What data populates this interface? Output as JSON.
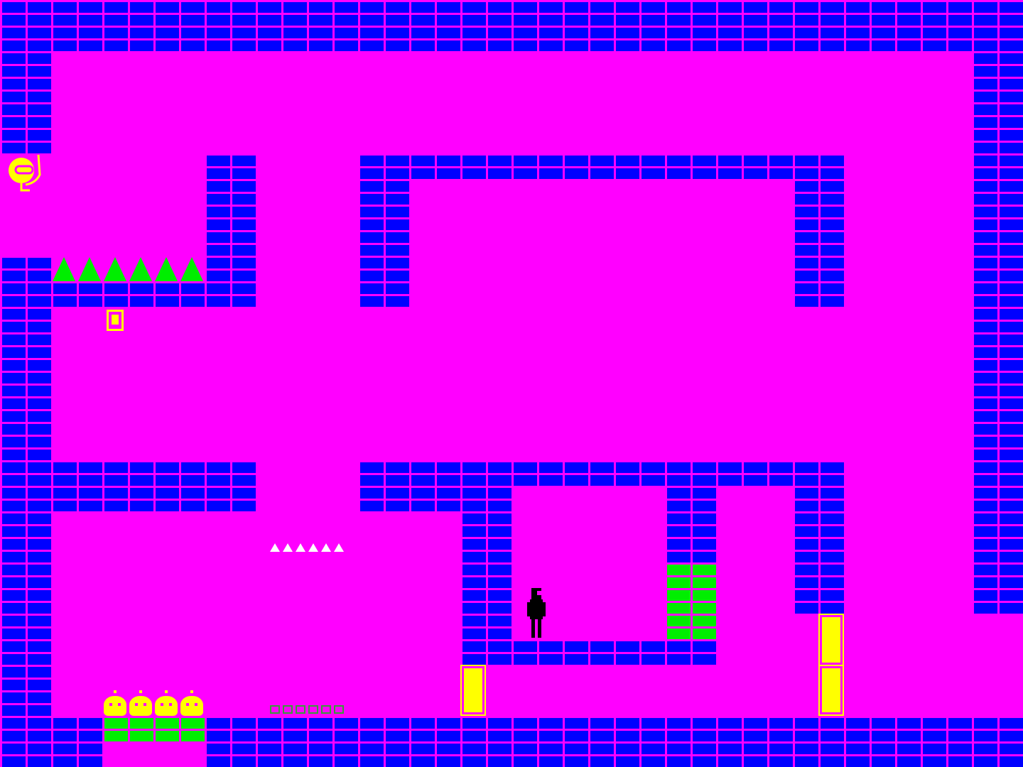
{
  "game": {
    "colors": {
      "background": "#ff00ff",
      "wall": "#0000ff",
      "mortar": "#ff00ff",
      "hazard": "#00ee00",
      "item": "#ffff00",
      "player": "#000000",
      "small_spikes": "#ffffff"
    },
    "entities": {
      "player": {
        "icon": "player-figure-icon"
      },
      "guardian": {
        "icon": "yellow-ring-creature-icon"
      },
      "collectible": {
        "icon": "yellow-key-icon"
      },
      "spikes_large": {
        "icon": "green-spike-icon",
        "count": 6
      },
      "spikes_small": {
        "icon": "white-spike-icon",
        "count": 6
      },
      "conveyor_small": {
        "icon": "green-block-icon",
        "count": 6
      },
      "cats": {
        "icon": "yellow-cat-icon",
        "count": 4
      },
      "doors": {
        "icon": "yellow-door-icon",
        "count": 3
      }
    }
  }
}
